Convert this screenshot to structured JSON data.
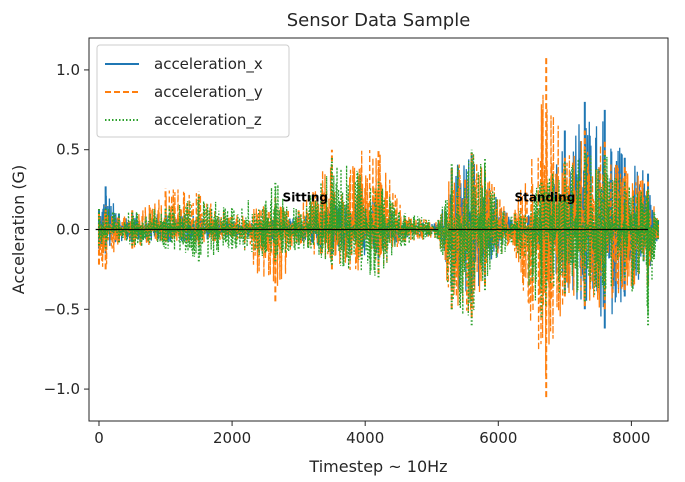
{
  "chart_data": {
    "type": "line",
    "title": "Sensor Data Sample",
    "xlabel": "Timestep ~ 10Hz",
    "ylabel": "Acceleration (G)",
    "xlim": [
      -150,
      8550
    ],
    "ylim": [
      -1.2,
      1.2
    ],
    "xticks": [
      0,
      2000,
      4000,
      6000,
      8000
    ],
    "xtick_labels": [
      "0",
      "2000",
      "4000",
      "6000",
      "8000"
    ],
    "yticks": [
      -1.0,
      -0.5,
      0.0,
      0.5,
      1.0
    ],
    "ytick_labels": [
      "−1.0",
      "−0.5",
      "0.0",
      "0.5",
      "1.0"
    ],
    "grid": false,
    "legend_position": "upper-left",
    "colors": {
      "acceleration_x": "#1f77b4",
      "acceleration_y": "#ff7f0e",
      "acceleration_z": "#2ca02c",
      "annotation_line": "#000000"
    },
    "series": [
      {
        "name": "acceleration_x",
        "style": "solid",
        "envelope": [
          {
            "x": 0,
            "min": -0.12,
            "max": 0.12
          },
          {
            "x": 100,
            "min": -0.15,
            "max": 0.27
          },
          {
            "x": 300,
            "min": -0.08,
            "max": 0.1
          },
          {
            "x": 500,
            "min": -0.08,
            "max": 0.1
          },
          {
            "x": 1000,
            "min": -0.08,
            "max": 0.1
          },
          {
            "x": 1500,
            "min": -0.08,
            "max": 0.1
          },
          {
            "x": 2000,
            "min": -0.05,
            "max": 0.05
          },
          {
            "x": 2600,
            "min": -0.06,
            "max": 0.06
          },
          {
            "x": 3000,
            "min": -0.08,
            "max": 0.08
          },
          {
            "x": 3500,
            "min": -0.15,
            "max": 0.15
          },
          {
            "x": 4200,
            "min": -0.18,
            "max": 0.2
          },
          {
            "x": 4600,
            "min": -0.06,
            "max": 0.06
          },
          {
            "x": 5100,
            "min": -0.04,
            "max": 0.04
          },
          {
            "x": 5300,
            "min": -0.38,
            "max": 0.38
          },
          {
            "x": 5600,
            "min": -0.45,
            "max": 0.48
          },
          {
            "x": 5800,
            "min": -0.3,
            "max": 0.35
          },
          {
            "x": 6200,
            "min": -0.06,
            "max": 0.06
          },
          {
            "x": 6650,
            "min": -0.12,
            "max": 0.12
          },
          {
            "x": 7000,
            "min": -0.4,
            "max": 0.62
          },
          {
            "x": 7300,
            "min": -0.5,
            "max": 0.8
          },
          {
            "x": 7600,
            "min": -0.62,
            "max": 0.75
          },
          {
            "x": 7900,
            "min": -0.42,
            "max": 0.45
          },
          {
            "x": 8250,
            "min": -0.35,
            "max": 0.35
          },
          {
            "x": 8400,
            "min": -0.05,
            "max": 0.05
          }
        ]
      },
      {
        "name": "acceleration_y",
        "style": "dashed",
        "envelope": [
          {
            "x": 0,
            "min": -0.22,
            "max": 0.12
          },
          {
            "x": 100,
            "min": -0.25,
            "max": 0.15
          },
          {
            "x": 300,
            "min": -0.08,
            "max": 0.08
          },
          {
            "x": 500,
            "min": -0.12,
            "max": 0.12
          },
          {
            "x": 1000,
            "min": -0.08,
            "max": 0.26
          },
          {
            "x": 1500,
            "min": -0.1,
            "max": 0.24
          },
          {
            "x": 2000,
            "min": -0.05,
            "max": 0.08
          },
          {
            "x": 2650,
            "min": -0.45,
            "max": 0.2
          },
          {
            "x": 3000,
            "min": -0.08,
            "max": 0.12
          },
          {
            "x": 3500,
            "min": -0.25,
            "max": 0.5
          },
          {
            "x": 4200,
            "min": -0.28,
            "max": 0.5
          },
          {
            "x": 4600,
            "min": -0.08,
            "max": 0.08
          },
          {
            "x": 5100,
            "min": -0.06,
            "max": 0.06
          },
          {
            "x": 5300,
            "min": -0.5,
            "max": 0.4
          },
          {
            "x": 5600,
            "min": -0.55,
            "max": 0.48
          },
          {
            "x": 5800,
            "min": -0.35,
            "max": 0.38
          },
          {
            "x": 6200,
            "min": -0.06,
            "max": 0.06
          },
          {
            "x": 6720,
            "min": -1.05,
            "max": 1.08
          },
          {
            "x": 7000,
            "min": -0.42,
            "max": 0.45
          },
          {
            "x": 7300,
            "min": -0.48,
            "max": 0.62
          },
          {
            "x": 7600,
            "min": -0.5,
            "max": 0.55
          },
          {
            "x": 7900,
            "min": -0.38,
            "max": 0.4
          },
          {
            "x": 8250,
            "min": -0.35,
            "max": 0.3
          },
          {
            "x": 8400,
            "min": -0.06,
            "max": 0.06
          }
        ]
      },
      {
        "name": "acceleration_z",
        "style": "dotted",
        "envelope": [
          {
            "x": 0,
            "min": -0.1,
            "max": 0.14
          },
          {
            "x": 100,
            "min": -0.12,
            "max": 0.14
          },
          {
            "x": 300,
            "min": -0.08,
            "max": 0.1
          },
          {
            "x": 500,
            "min": -0.1,
            "max": 0.12
          },
          {
            "x": 1000,
            "min": -0.12,
            "max": 0.14
          },
          {
            "x": 1500,
            "min": -0.2,
            "max": 0.22
          },
          {
            "x": 2000,
            "min": -0.12,
            "max": 0.14
          },
          {
            "x": 2650,
            "min": -0.2,
            "max": 0.3
          },
          {
            "x": 3000,
            "min": -0.12,
            "max": 0.12
          },
          {
            "x": 3500,
            "min": -0.22,
            "max": 0.45
          },
          {
            "x": 4200,
            "min": -0.3,
            "max": 0.3
          },
          {
            "x": 4600,
            "min": -0.1,
            "max": 0.1
          },
          {
            "x": 5100,
            "min": -0.06,
            "max": 0.06
          },
          {
            "x": 5300,
            "min": -0.5,
            "max": 0.42
          },
          {
            "x": 5600,
            "min": -0.6,
            "max": 0.5
          },
          {
            "x": 5800,
            "min": -0.38,
            "max": 0.45
          },
          {
            "x": 6200,
            "min": -0.08,
            "max": 0.08
          },
          {
            "x": 6650,
            "min": -0.55,
            "max": 0.3
          },
          {
            "x": 7000,
            "min": -0.4,
            "max": 0.42
          },
          {
            "x": 7300,
            "min": -0.45,
            "max": 0.5
          },
          {
            "x": 7600,
            "min": -0.42,
            "max": 0.48
          },
          {
            "x": 7900,
            "min": -0.3,
            "max": 0.3
          },
          {
            "x": 8250,
            "min": -0.6,
            "max": 0.25
          },
          {
            "x": 8400,
            "min": -0.06,
            "max": 0.06
          }
        ]
      }
    ],
    "annotations": [
      {
        "text": "Sitting",
        "x": 3100,
        "y": 0.2,
        "line_x": [
          -50,
          5100
        ],
        "line_y": 0.0
      },
      {
        "text": "Standing",
        "x": 6700,
        "y": 0.2,
        "line_x": [
          5250,
          8250
        ],
        "line_y": 0.0
      }
    ]
  }
}
